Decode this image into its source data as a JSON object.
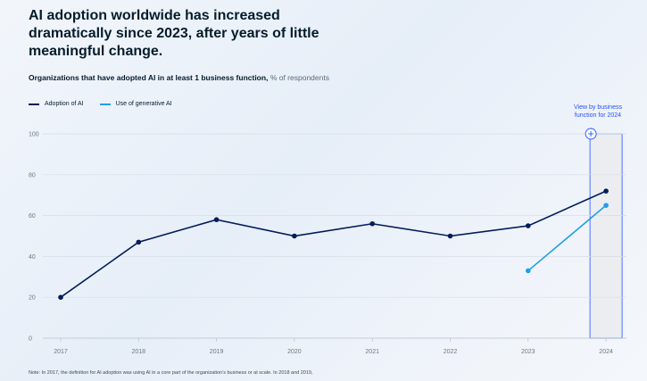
{
  "header": {
    "title": "AI adoption worldwide has increased dramatically since 2023, after years of little meaningful change.",
    "subtitle_bold": "Organizations that have adopted AI in at least 1 business function,",
    "subtitle_unit": "% of respondents"
  },
  "legend": [
    {
      "label": "Adoption of AI",
      "color": "#051c5a"
    },
    {
      "label": "Use of generative AI",
      "color": "#1f9fe6"
    }
  ],
  "callout": {
    "line1": "View by business",
    "line2": "function for 2024",
    "icon": "plus-circle-icon"
  },
  "note": "Note: In 2017, the definition for AI adoption was using AI in a core part of the organization’s business or at scale. In 2018 and 2019,",
  "chart_data": {
    "type": "line",
    "x": [
      "2017",
      "2018",
      "2019",
      "2020",
      "2021",
      "2022",
      "2023",
      "2024"
    ],
    "ylim": [
      0,
      100
    ],
    "yticks": [
      0,
      20,
      40,
      60,
      80,
      100
    ],
    "grid": true,
    "legend_position": "top-left",
    "highlight_category": "2024",
    "series": [
      {
        "name": "Adoption of AI",
        "color": "#051c5a",
        "values": [
          20,
          47,
          58,
          50,
          56,
          50,
          55,
          72
        ]
      },
      {
        "name": "Use of generative AI",
        "color": "#1f9fe6",
        "values": [
          null,
          null,
          null,
          null,
          null,
          null,
          33,
          65
        ]
      }
    ]
  }
}
